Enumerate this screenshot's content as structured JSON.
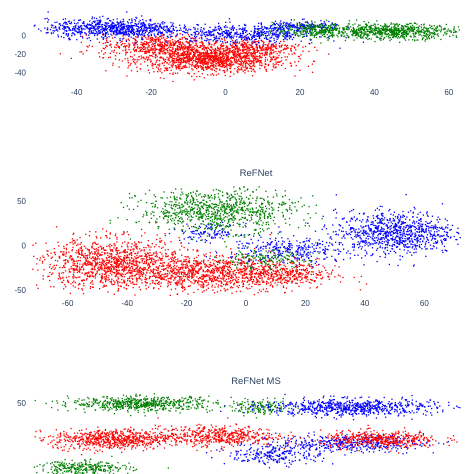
{
  "chart_data": [
    {
      "type": "scatter",
      "title": "",
      "xlabel": "",
      "ylabel": "",
      "xlim": [
        -52,
        63
      ],
      "ylim": [
        -50,
        38
      ],
      "x_ticks": [
        -40,
        -20,
        0,
        20,
        40,
        60
      ],
      "y_ticks": [
        0,
        -20,
        -40
      ],
      "grid": false,
      "legend": "none",
      "series": [
        {
          "color": "#ff0000",
          "clusters": [
            {
              "cx": -4,
              "cy": -25,
              "sx": 10,
              "sy": 7,
              "n": 1300
            },
            {
              "cx": -18,
              "cy": -10,
              "sx": 8,
              "sy": 6,
              "n": 500
            },
            {
              "cx": 8,
              "cy": -12,
              "sx": 6,
              "sy": 4,
              "n": 250
            }
          ]
        },
        {
          "color": "#0000ff",
          "clusters": [
            {
              "cx": -30,
              "cy": 8,
              "sx": 9,
              "sy": 5,
              "n": 800
            },
            {
              "cx": 5,
              "cy": 2,
              "sx": 10,
              "sy": 5,
              "n": 500
            },
            {
              "cx": 20,
              "cy": 10,
              "sx": 5,
              "sy": 3,
              "n": 200
            }
          ]
        },
        {
          "color": "#008000",
          "clusters": [
            {
              "cx": 45,
              "cy": 5,
              "sx": 8,
              "sy": 4,
              "n": 700
            },
            {
              "cx": 25,
              "cy": 6,
              "sx": 6,
              "sy": 4,
              "n": 300
            }
          ]
        }
      ]
    },
    {
      "type": "scatter",
      "title": "ReFNet",
      "xlabel": "",
      "ylabel": "",
      "xlim": [
        -72,
        72
      ],
      "ylim": [
        -57,
        67
      ],
      "x_ticks": [
        -60,
        -40,
        -20,
        0,
        20,
        40,
        60
      ],
      "y_ticks": [
        50,
        0,
        -50
      ],
      "grid": false,
      "legend": "none",
      "series": [
        {
          "color": "#ff0000",
          "clusters": [
            {
              "cx": -45,
              "cy": -20,
              "sx": 12,
              "sy": 14,
              "n": 1200
            },
            {
              "cx": -15,
              "cy": -30,
              "sx": 12,
              "sy": 10,
              "n": 800
            },
            {
              "cx": 10,
              "cy": -32,
              "sx": 10,
              "sy": 8,
              "n": 500
            }
          ]
        },
        {
          "color": "#0000ff",
          "clusters": [
            {
              "cx": 50,
              "cy": 15,
              "sx": 10,
              "sy": 12,
              "n": 900
            },
            {
              "cx": 15,
              "cy": -5,
              "sx": 10,
              "sy": 8,
              "n": 300
            },
            {
              "cx": -12,
              "cy": 15,
              "sx": 5,
              "sy": 5,
              "n": 120
            }
          ]
        },
        {
          "color": "#008000",
          "clusters": [
            {
              "cx": -10,
              "cy": 40,
              "sx": 13,
              "sy": 12,
              "n": 900
            },
            {
              "cx": 5,
              "cy": -15,
              "sx": 8,
              "sy": 5,
              "n": 150
            }
          ]
        }
      ]
    },
    {
      "type": "scatter",
      "title": "ReFNet MS",
      "xlabel": "",
      "ylabel": "",
      "xlim": [
        -72,
        72
      ],
      "ylim": [
        -49,
        64
      ],
      "x_ticks": [],
      "y_ticks": [
        50
      ],
      "grid": false,
      "legend": "none",
      "series": [
        {
          "color": "#008000",
          "clusters": [
            {
              "cx": -35,
              "cy": 50,
              "sx": 12,
              "sy": 5,
              "n": 600
            },
            {
              "cx": -55,
              "cy": -40,
              "sx": 8,
              "sy": 5,
              "n": 300
            },
            {
              "cx": 5,
              "cy": 45,
              "sx": 5,
              "sy": 5,
              "n": 150
            }
          ]
        },
        {
          "color": "#0000ff",
          "clusters": [
            {
              "cx": 35,
              "cy": 45,
              "sx": 14,
              "sy": 6,
              "n": 700
            },
            {
              "cx": 35,
              "cy": -5,
              "sx": 12,
              "sy": 6,
              "n": 400
            },
            {
              "cx": 10,
              "cy": -20,
              "sx": 8,
              "sy": 8,
              "n": 250
            }
          ]
        },
        {
          "color": "#ff0000",
          "clusters": [
            {
              "cx": -45,
              "cy": 0,
              "sx": 10,
              "sy": 7,
              "n": 700
            },
            {
              "cx": -10,
              "cy": 5,
              "sx": 10,
              "sy": 7,
              "n": 500
            },
            {
              "cx": 45,
              "cy": 0,
              "sx": 10,
              "sy": 6,
              "n": 450
            }
          ]
        }
      ]
    }
  ]
}
